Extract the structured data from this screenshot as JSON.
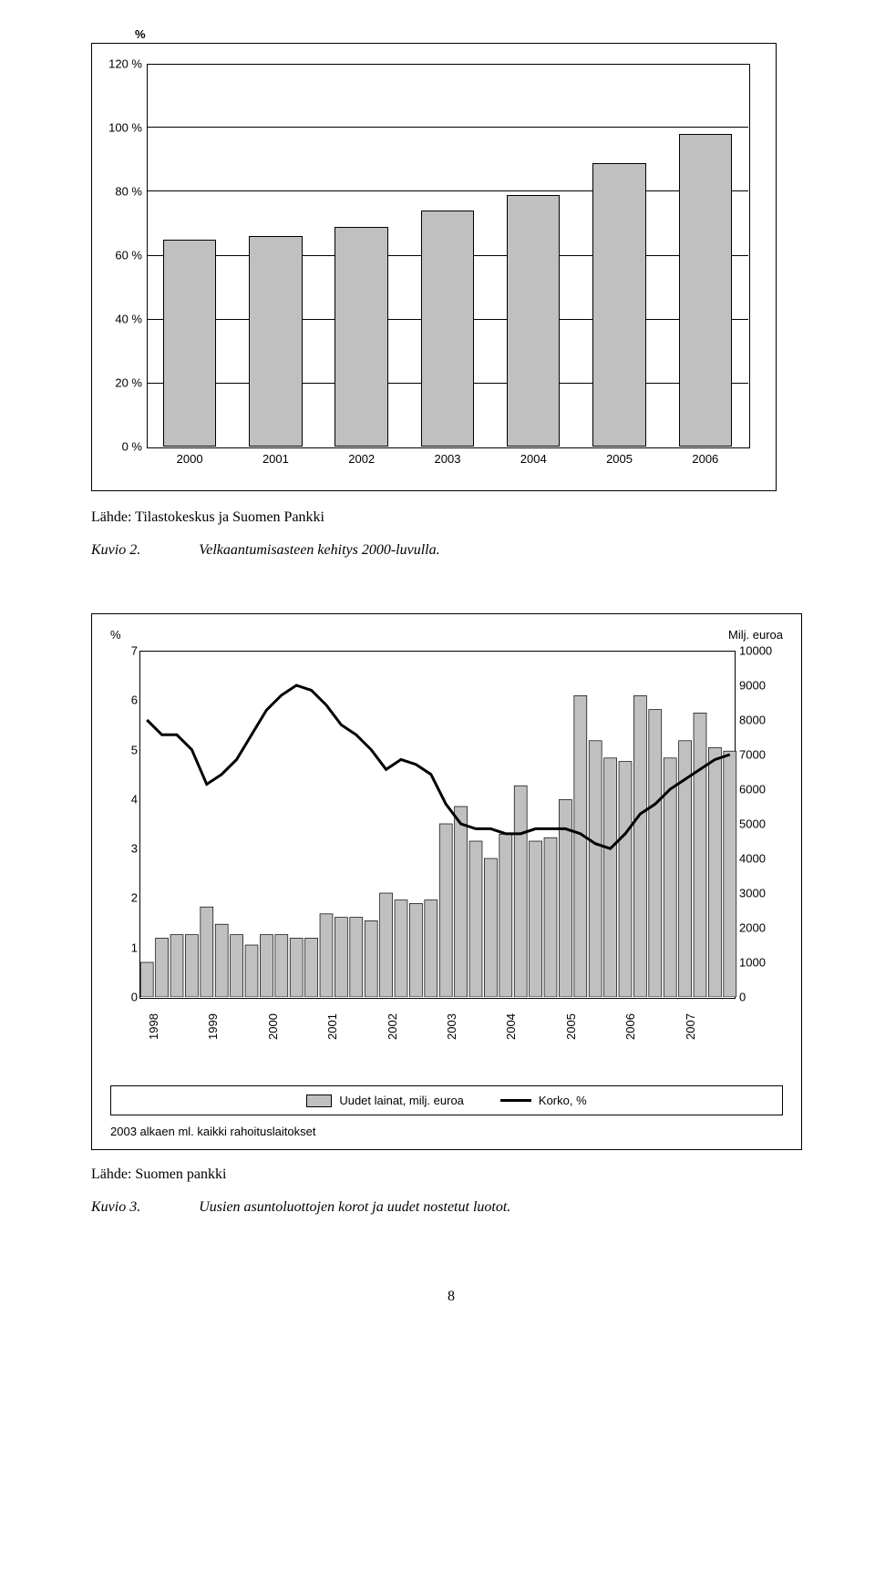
{
  "chart1": {
    "type": "bar",
    "y_axis_label": "%",
    "categories": [
      "2000",
      "2001",
      "2002",
      "2003",
      "2004",
      "2005",
      "2006"
    ],
    "values": [
      65,
      66,
      69,
      74,
      79,
      89,
      98
    ],
    "ylim": [
      0,
      120
    ],
    "ytick_step": 20,
    "ytick_labels": [
      "0 %",
      "20 %",
      "40 %",
      "60 %",
      "80 %",
      "100 %",
      "120 %"
    ],
    "bar_color": "#c0c0c0",
    "bar_border_color": "#000000",
    "plot_border_color": "#000000",
    "gridline_color": "#000000",
    "background_color": "#ffffff",
    "label_fontsize": 13,
    "source_text": "Lähde: Tilastokeskus ja Suomen Pankki",
    "figure_label": "Kuvio 2.",
    "figure_title": "Velkaantumisasteen kehitys 2000-luvulla."
  },
  "chart2": {
    "type": "bar+line",
    "left_axis_label": "%",
    "right_axis_label": "Milj. euroa",
    "left_ylim": [
      0,
      7
    ],
    "right_ylim": [
      0,
      10000
    ],
    "left_ticks": [
      "0",
      "1",
      "2",
      "3",
      "4",
      "5",
      "6",
      "7"
    ],
    "right_ticks": [
      "0",
      "1000",
      "2000",
      "3000",
      "4000",
      "5000",
      "6000",
      "7000",
      "8000",
      "9000",
      "10000"
    ],
    "bar_color": "#c0c0c0",
    "bar_border_color": "#000000",
    "line_color": "#000000",
    "line_width": 3,
    "plot_border_color": "#000000",
    "background_color": "#ffffff",
    "label_fontsize": 13,
    "years": [
      "1998",
      "1999",
      "2000",
      "2001",
      "2002",
      "2003",
      "2004",
      "2005",
      "2006",
      "2007"
    ],
    "bar_values": [
      1000,
      1700,
      1800,
      1800,
      2600,
      2100,
      1800,
      1500,
      1800,
      1800,
      1700,
      1700,
      2400,
      2300,
      2300,
      2200,
      3000,
      2800,
      2700,
      2800,
      5000,
      5500,
      4500,
      4000,
      4700,
      6100,
      4500,
      4600,
      5700,
      8700,
      7400,
      6900,
      6800,
      8700,
      8300,
      6900,
      7400,
      8200,
      7200,
      7100
    ],
    "line_values": [
      5.6,
      5.3,
      5.3,
      5.0,
      4.3,
      4.5,
      4.8,
      5.3,
      5.8,
      6.1,
      6.3,
      6.2,
      5.9,
      5.5,
      5.3,
      5.0,
      4.6,
      4.8,
      4.7,
      4.5,
      3.9,
      3.5,
      3.4,
      3.4,
      3.3,
      3.3,
      3.4,
      3.4,
      3.4,
      3.3,
      3.1,
      3.0,
      3.3,
      3.7,
      3.9,
      4.2,
      4.4,
      4.6,
      4.8,
      4.9
    ],
    "legend_bar": "Uudet lainat, milj. euroa",
    "legend_line": "Korko, %",
    "footnote": "2003 alkaen ml. kaikki rahoituslaitokset",
    "source_text": "Lähde: Suomen pankki",
    "figure_label": "Kuvio 3.",
    "figure_title": "Uusien asuntoluottojen korot ja uudet nostetut luotot."
  },
  "page_number": "8"
}
